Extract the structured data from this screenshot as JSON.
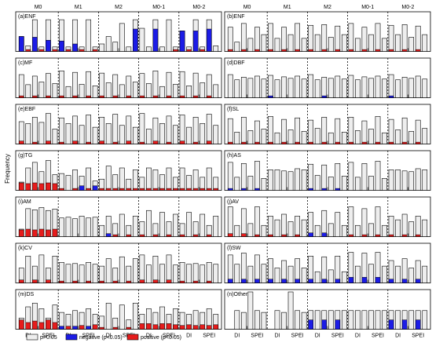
{
  "figure": {
    "ylabel": "Frequency",
    "xtick_labels": [
      "DI",
      "SPEI"
    ],
    "model_labels": [
      "M0",
      "M1",
      "M2",
      "M0-1",
      "M0-2"
    ],
    "colors": {
      "ns": "#eeeeee",
      "negative": "#1c1ce6",
      "positive": "#e61c1c",
      "frame": "#000000"
    },
    "legend": [
      {
        "key": "ns",
        "label": "p>0.05"
      },
      {
        "key": "negative",
        "label": "negative (p<0.05)"
      },
      {
        "key": "positive",
        "label": "positive (p<0.05)"
      }
    ]
  },
  "chart_data": [
    {
      "type": "bar",
      "title": "(a)ENF",
      "ylim": [
        0,
        1
      ],
      "total": [
        0.4,
        0.15,
        0.85,
        0.12,
        0.85,
        0.12,
        0.85,
        0.12,
        0.85,
        0.12,
        0.85,
        0.12,
        0.2,
        0.4,
        0.25,
        0.75,
        0.12,
        0.85,
        0.62,
        0.12,
        0.85,
        0.12,
        0.85,
        0.12,
        0.55,
        0.12,
        0.85,
        0.12,
        0.85,
        0.15
      ],
      "negative": [
        0.4,
        0,
        0.38,
        0,
        0.3,
        0,
        0.28,
        0,
        0.2,
        0,
        0,
        0,
        0,
        0,
        0,
        0,
        0,
        0.6,
        0,
        0,
        0.6,
        0,
        0,
        0,
        0.55,
        0,
        0.55,
        0,
        0.6,
        0
      ],
      "positive": [
        0,
        0.05,
        0,
        0.05,
        0,
        0.05,
        0,
        0.05,
        0,
        0.05,
        0,
        0.05,
        0,
        0,
        0,
        0,
        0,
        0,
        0,
        0,
        0,
        0,
        0,
        0.05,
        0,
        0.05,
        0,
        0.05,
        0,
        0
      ]
    },
    {
      "type": "bar",
      "title": "(b)ENF",
      "ylim": [
        0,
        1
      ],
      "total": [
        0.65,
        0.25,
        0.75,
        0.35,
        0.65,
        0.45,
        0.75,
        0.35,
        0.65,
        0.45,
        0.75,
        0.35,
        0.7,
        0.45,
        0.72,
        0.38,
        0.68,
        0.45,
        0.75,
        0.35,
        0.65,
        0.45,
        0.75,
        0.35,
        0.7,
        0.45,
        0.72,
        0.38,
        0.68,
        0.45
      ],
      "negative": [
        0,
        0,
        0,
        0,
        0,
        0,
        0,
        0,
        0,
        0,
        0,
        0,
        0,
        0,
        0,
        0,
        0,
        0,
        0,
        0,
        0,
        0,
        0,
        0,
        0,
        0,
        0,
        0,
        0,
        0
      ],
      "positive": [
        0.05,
        0,
        0.05,
        0,
        0.05,
        0,
        0.05,
        0,
        0.05,
        0,
        0.05,
        0,
        0.05,
        0,
        0.05,
        0,
        0.05,
        0,
        0.05,
        0,
        0.05,
        0,
        0.05,
        0,
        0.05,
        0,
        0.05,
        0,
        0.05,
        0
      ]
    },
    {
      "type": "bar",
      "title": "(c)MF",
      "ylim": [
        0,
        1
      ],
      "total": [
        0.62,
        0.35,
        0.58,
        0.42,
        0.65,
        0.38,
        0.72,
        0.3,
        0.68,
        0.36,
        0.7,
        0.32,
        0.66,
        0.4,
        0.62,
        0.35,
        0.58,
        0.42,
        0.65,
        0.38,
        0.72,
        0.3,
        0.68,
        0.36,
        0.7,
        0.32,
        0.66,
        0.4,
        0.62,
        0.35
      ],
      "negative": [
        0,
        0,
        0,
        0,
        0,
        0,
        0,
        0,
        0,
        0,
        0,
        0,
        0,
        0,
        0,
        0,
        0,
        0,
        0,
        0,
        0,
        0,
        0,
        0,
        0,
        0,
        0,
        0,
        0,
        0
      ],
      "positive": [
        0.05,
        0,
        0.05,
        0,
        0.05,
        0,
        0.05,
        0,
        0.05,
        0,
        0.05,
        0,
        0.05,
        0,
        0.05,
        0,
        0.05,
        0,
        0.05,
        0,
        0.05,
        0,
        0.05,
        0,
        0.05,
        0,
        0.05,
        0,
        0.05,
        0
      ]
    },
    {
      "type": "bar",
      "title": "(d)DBF",
      "ylim": [
        0,
        1
      ],
      "total": [
        0.62,
        0.48,
        0.55,
        0.52,
        0.58,
        0.5,
        0.6,
        0.48,
        0.56,
        0.52,
        0.58,
        0.5,
        0.62,
        0.48,
        0.55,
        0.52,
        0.58,
        0.5,
        0.6,
        0.48,
        0.56,
        0.52,
        0.58,
        0.5,
        0.62,
        0.48,
        0.55,
        0.52,
        0.58,
        0.5
      ],
      "negative": [
        0,
        0,
        0,
        0,
        0,
        0,
        0.05,
        0,
        0,
        0,
        0,
        0,
        0,
        0,
        0.05,
        0,
        0,
        0,
        0,
        0,
        0,
        0,
        0,
        0,
        0.05,
        0,
        0,
        0,
        0,
        0
      ],
      "positive": [
        0,
        0,
        0,
        0,
        0,
        0,
        0,
        0,
        0,
        0,
        0,
        0,
        0,
        0,
        0,
        0,
        0,
        0,
        0,
        0,
        0,
        0,
        0,
        0,
        0,
        0,
        0,
        0,
        0,
        0
      ]
    },
    {
      "type": "bar",
      "title": "(e)EBF",
      "ylim": [
        0,
        1
      ],
      "total": [
        0.6,
        0.55,
        0.72,
        0.58,
        0.82,
        0.4,
        0.7,
        0.55,
        0.75,
        0.5,
        0.78,
        0.45,
        0.72,
        0.55,
        0.8,
        0.5,
        0.75,
        0.45,
        0.82,
        0.4,
        0.7,
        0.55,
        0.75,
        0.5,
        0.78,
        0.45,
        0.72,
        0.55,
        0.8,
        0.5
      ],
      "negative": [
        0,
        0,
        0,
        0,
        0,
        0,
        0,
        0,
        0,
        0,
        0,
        0,
        0,
        0,
        0,
        0,
        0,
        0,
        0,
        0,
        0,
        0,
        0,
        0,
        0,
        0,
        0,
        0,
        0,
        0
      ],
      "positive": [
        0.08,
        0,
        0.05,
        0,
        0.08,
        0,
        0.05,
        0,
        0.08,
        0,
        0.05,
        0,
        0.08,
        0,
        0.05,
        0,
        0.08,
        0,
        0.05,
        0,
        0.08,
        0,
        0.05,
        0,
        0.08,
        0,
        0.05,
        0,
        0.08,
        0
      ]
    },
    {
      "type": "bar",
      "title": "(f)SL",
      "ylim": [
        0,
        1
      ],
      "total": [
        0.68,
        0.32,
        0.72,
        0.36,
        0.62,
        0.4,
        0.74,
        0.3,
        0.66,
        0.38,
        0.7,
        0.34,
        0.64,
        0.42,
        0.72,
        0.3,
        0.68,
        0.32,
        0.72,
        0.36,
        0.62,
        0.4,
        0.74,
        0.3,
        0.66,
        0.38,
        0.7,
        0.34,
        0.64,
        0.42
      ],
      "negative": [
        0,
        0,
        0,
        0,
        0,
        0,
        0,
        0,
        0,
        0,
        0,
        0,
        0,
        0,
        0,
        0,
        0,
        0,
        0,
        0,
        0,
        0,
        0,
        0,
        0,
        0,
        0,
        0,
        0,
        0
      ],
      "positive": [
        0.05,
        0,
        0.05,
        0,
        0.05,
        0,
        0.05,
        0,
        0.05,
        0,
        0.05,
        0,
        0.05,
        0,
        0.05,
        0,
        0.05,
        0,
        0.05,
        0,
        0.05,
        0,
        0.05,
        0,
        0.05,
        0,
        0.05,
        0,
        0.05,
        0
      ]
    },
    {
      "type": "bar",
      "title": "(g)TG",
      "ylim": [
        0,
        1
      ],
      "total": [
        0.22,
        0.6,
        0.75,
        0.5,
        0.8,
        0.42,
        0.45,
        0.4,
        0.55,
        0.38,
        0.6,
        0.25,
        0.3,
        0.65,
        0.42,
        0.6,
        0.3,
        0.55,
        0.35,
        0.6,
        0.55,
        0.42,
        0.6,
        0.35,
        0.6,
        0.4,
        0.55,
        0.35,
        0.6,
        0.35
      ],
      "negative": [
        0,
        0,
        0,
        0,
        0,
        0,
        0,
        0,
        0,
        0.12,
        0,
        0.12,
        0,
        0,
        0,
        0,
        0,
        0,
        0,
        0,
        0,
        0,
        0,
        0,
        0,
        0,
        0,
        0,
        0,
        0
      ],
      "positive": [
        0.2,
        0.18,
        0.2,
        0.18,
        0.2,
        0.18,
        0.05,
        0,
        0.05,
        0,
        0.05,
        0,
        0.05,
        0.05,
        0.05,
        0.05,
        0.05,
        0.05,
        0.05,
        0.05,
        0.05,
        0.05,
        0.05,
        0.05,
        0.05,
        0.05,
        0.05,
        0.05,
        0.05,
        0.05
      ]
    },
    {
      "type": "bar",
      "title": "(h)AS",
      "ylim": [
        0,
        1
      ],
      "total": [
        0.75,
        0.35,
        0.72,
        0.38,
        0.78,
        0.32,
        0.55,
        0.55,
        0.52,
        0.5,
        0.58,
        0.55,
        0.7,
        0.4,
        0.68,
        0.36,
        0.72,
        0.38,
        0.75,
        0.35,
        0.72,
        0.38,
        0.78,
        0.32,
        0.55,
        0.55,
        0.52,
        0.5,
        0.58,
        0.55
      ],
      "negative": [
        0.05,
        0,
        0.05,
        0,
        0.05,
        0,
        0,
        0,
        0,
        0,
        0,
        0,
        0.05,
        0,
        0.05,
        0,
        0.05,
        0,
        0,
        0,
        0,
        0,
        0,
        0,
        0,
        0,
        0,
        0,
        0,
        0
      ],
      "positive": [
        0,
        0,
        0,
        0,
        0,
        0,
        0,
        0,
        0,
        0,
        0,
        0,
        0,
        0,
        0,
        0,
        0,
        0,
        0,
        0,
        0,
        0,
        0,
        0,
        0,
        0,
        0,
        0,
        0,
        0
      ]
    },
    {
      "type": "bar",
      "title": "(i)AM",
      "ylim": [
        0,
        1
      ],
      "total": [
        0.2,
        0.75,
        0.72,
        0.78,
        0.7,
        0.74,
        0.5,
        0.52,
        0.48,
        0.55,
        0.5,
        0.52,
        0.3,
        0.55,
        0.35,
        0.6,
        0.3,
        0.55,
        0.4,
        0.7,
        0.35,
        0.65,
        0.4,
        0.6,
        0.35,
        0.65,
        0.4,
        0.6,
        0.3,
        0.55
      ],
      "negative": [
        0,
        0,
        0,
        0,
        0,
        0,
        0,
        0,
        0,
        0,
        0,
        0,
        0,
        0.08,
        0,
        0,
        0,
        0,
        0,
        0,
        0,
        0,
        0,
        0,
        0,
        0,
        0,
        0,
        0,
        0
      ],
      "positive": [
        0.18,
        0.2,
        0.18,
        0.2,
        0.18,
        0.2,
        0,
        0,
        0,
        0,
        0,
        0,
        0,
        0,
        0.05,
        0,
        0.05,
        0,
        0.05,
        0,
        0.05,
        0,
        0.05,
        0,
        0.05,
        0,
        0.05,
        0,
        0.05,
        0
      ]
    },
    {
      "type": "bar",
      "title": "(j)AV",
      "ylim": [
        0,
        1
      ],
      "total": [
        0.8,
        0.3,
        0.75,
        0.35,
        0.8,
        0.3,
        0.55,
        0.45,
        0.6,
        0.4,
        0.55,
        0.45,
        0.65,
        0.3,
        0.7,
        0.35,
        0.65,
        0.3,
        0.8,
        0.3,
        0.75,
        0.35,
        0.8,
        0.3,
        0.55,
        0.45,
        0.6,
        0.4,
        0.55,
        0.45
      ],
      "negative": [
        0,
        0,
        0,
        0,
        0,
        0,
        0,
        0,
        0,
        0,
        0,
        0,
        0.1,
        0,
        0.1,
        0,
        0,
        0,
        0,
        0,
        0,
        0,
        0,
        0,
        0,
        0,
        0,
        0,
        0,
        0
      ],
      "positive": [
        0.08,
        0,
        0.08,
        0,
        0.05,
        0,
        0.05,
        0,
        0.05,
        0,
        0.05,
        0,
        0,
        0,
        0,
        0,
        0,
        0,
        0.05,
        0,
        0.05,
        0,
        0.05,
        0,
        0.05,
        0,
        0.05,
        0,
        0.05,
        0
      ]
    },
    {
      "type": "bar",
      "title": "(k)CV",
      "ylim": [
        0,
        1
      ],
      "total": [
        0.4,
        0.72,
        0.45,
        0.75,
        0.4,
        0.72,
        0.55,
        0.5,
        0.52,
        0.48,
        0.55,
        0.5,
        0.45,
        0.65,
        0.4,
        0.7,
        0.45,
        0.65,
        0.75,
        0.48,
        0.72,
        0.5,
        0.75,
        0.48,
        0.55,
        0.5,
        0.52,
        0.48,
        0.55,
        0.5
      ],
      "negative": [
        0,
        0,
        0,
        0,
        0,
        0,
        0,
        0,
        0,
        0,
        0,
        0,
        0,
        0,
        0,
        0,
        0,
        0,
        0,
        0,
        0,
        0,
        0,
        0,
        0,
        0,
        0,
        0,
        0,
        0
      ],
      "positive": [
        0.08,
        0,
        0.08,
        0,
        0.08,
        0,
        0.05,
        0,
        0.05,
        0,
        0.05,
        0,
        0.05,
        0,
        0.05,
        0,
        0.05,
        0,
        0.08,
        0,
        0.08,
        0,
        0.08,
        0,
        0.05,
        0,
        0.05,
        0,
        0.05,
        0
      ]
    },
    {
      "type": "bar",
      "title": "(l)SW",
      "ylim": [
        0,
        1
      ],
      "total": [
        0.75,
        0.5,
        0.8,
        0.45,
        0.75,
        0.5,
        0.65,
        0.4,
        0.6,
        0.45,
        0.65,
        0.4,
        0.72,
        0.3,
        0.7,
        0.35,
        0.72,
        0.3,
        0.82,
        0.45,
        0.8,
        0.5,
        0.82,
        0.45,
        0.6,
        0.45,
        0.65,
        0.4,
        0.6,
        0.45
      ],
      "negative": [
        0.1,
        0,
        0.1,
        0,
        0.1,
        0,
        0.1,
        0,
        0.1,
        0,
        0.1,
        0,
        0.1,
        0,
        0.1,
        0,
        0.1,
        0,
        0.15,
        0,
        0.15,
        0,
        0.15,
        0,
        0.1,
        0,
        0.1,
        0,
        0.1,
        0
      ],
      "positive": [
        0,
        0,
        0,
        0,
        0,
        0,
        0,
        0,
        0,
        0,
        0,
        0,
        0,
        0,
        0,
        0,
        0,
        0,
        0,
        0,
        0,
        0,
        0,
        0,
        0,
        0,
        0,
        0,
        0,
        0
      ]
    },
    {
      "type": "bar",
      "title": "(m)DS",
      "ylim": [
        0,
        1
      ],
      "total": [
        0.3,
        0.6,
        0.7,
        0.55,
        0.3,
        0.65,
        0.45,
        0.4,
        0.5,
        0.45,
        0.55,
        0.4,
        0.35,
        0.7,
        0.3,
        0.65,
        0.25,
        0.7,
        0.4,
        0.55,
        0.45,
        0.6,
        0.4,
        0.55,
        0.45,
        0.4,
        0.5,
        0.45,
        0.55,
        0.4
      ],
      "negative": [
        0,
        0,
        0,
        0,
        0,
        0,
        0.08,
        0,
        0.08,
        0,
        0.08,
        0,
        0,
        0,
        0,
        0,
        0,
        0,
        0,
        0,
        0,
        0,
        0,
        0,
        0,
        0,
        0,
        0,
        0,
        0
      ],
      "positive": [
        0.25,
        0.18,
        0.22,
        0.18,
        0.25,
        0.18,
        0,
        0.08,
        0,
        0.1,
        0,
        0.12,
        0.05,
        0,
        0.05,
        0,
        0.05,
        0,
        0.15,
        0.15,
        0.12,
        0.15,
        0.15,
        0.12,
        0.1,
        0.12,
        0.1,
        0.12,
        0.1,
        0.12
      ]
    },
    {
      "type": "bar",
      "title": "(n)Others",
      "ylim": [
        0,
        1
      ],
      "total": [
        0,
        0.5,
        0.45,
        1.0,
        0.5,
        0.45,
        0,
        0.5,
        0.45,
        1.0,
        0.5,
        0.45,
        0.5,
        0.5,
        0.5,
        0.5,
        0.5,
        0.5,
        0.5,
        0.5,
        0.5,
        0.5,
        0.5,
        0.5,
        0.5,
        0.5,
        0.5,
        0.5,
        0.5,
        0.5
      ],
      "negative": [
        0,
        0,
        0,
        0,
        0,
        0,
        0,
        0,
        0,
        0,
        0,
        0,
        0.25,
        0,
        0.25,
        0,
        0.25,
        0,
        0,
        0,
        0,
        0,
        0,
        0,
        0.25,
        0,
        0.25,
        0,
        0.25,
        0
      ],
      "positive": [
        0,
        0,
        0,
        0,
        0,
        0,
        0,
        0,
        0,
        0,
        0,
        0,
        0,
        0,
        0,
        0,
        0,
        0,
        0,
        0,
        0,
        0,
        0,
        0,
        0,
        0,
        0,
        0,
        0,
        0
      ]
    }
  ]
}
